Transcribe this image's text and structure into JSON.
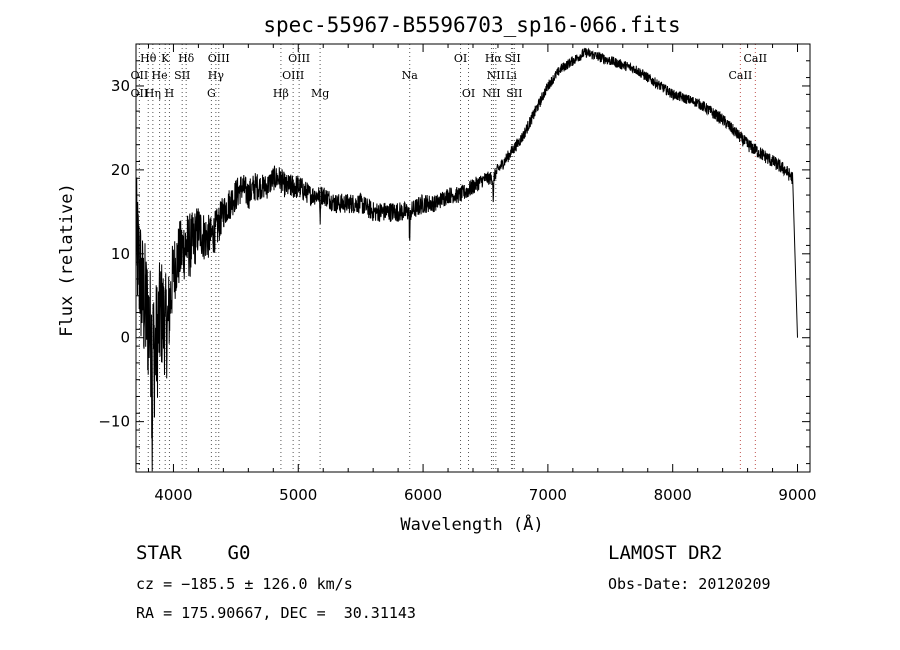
{
  "chart_data": {
    "type": "line",
    "title": "spec-55967-B5596703_sp16-066.fits",
    "xlabel": "Wavelength (Å)",
    "ylabel": "Flux (relative)",
    "xlim": [
      3700,
      9100
    ],
    "ylim": [
      -16,
      35
    ],
    "xticks": [
      4000,
      5000,
      6000,
      7000,
      8000,
      9000
    ],
    "yticks": [
      -10,
      0,
      10,
      20,
      30
    ],
    "grid": false,
    "legend": "none",
    "series": [
      {
        "x": [
          3700,
          3750,
          3800,
          3850,
          3900,
          3950,
          4000,
          4050,
          4100,
          4150,
          4200,
          4250,
          4300,
          4350,
          4400,
          4450,
          4500,
          4550,
          4600,
          4650,
          4700,
          4750,
          4800,
          4850,
          4900,
          4950,
          5000,
          5100,
          5200,
          5300,
          5400,
          5500,
          5600,
          5700,
          5800,
          5900,
          6000,
          6100,
          6200,
          6300,
          6400,
          6500,
          6560,
          6600,
          6700,
          6800,
          6900,
          7000,
          7100,
          7200,
          7300,
          7400,
          7500,
          7600,
          7700,
          7800,
          7900,
          8000,
          8100,
          8200,
          8300,
          8400,
          8500,
          8600,
          8700,
          8800,
          8900,
          8960,
          9000
        ],
        "y": [
          12,
          5,
          2,
          -2,
          3,
          1,
          8,
          10,
          11,
          11,
          13,
          12,
          12,
          13,
          15,
          16,
          17,
          18,
          17,
          18,
          18,
          18,
          19,
          19,
          18,
          18,
          18,
          17,
          17,
          16,
          16,
          16,
          15,
          15,
          15,
          15,
          16,
          16,
          17,
          17,
          18,
          19,
          19,
          20,
          22,
          24,
          27,
          30,
          32,
          33,
          34,
          33.5,
          33,
          32.5,
          32,
          31,
          30,
          29,
          28.5,
          28,
          27,
          26,
          24.5,
          23,
          22,
          21,
          20,
          19,
          0
        ],
        "noise": [
          8,
          8,
          8,
          8,
          7,
          6,
          4,
          4,
          4,
          4,
          3,
          3,
          2.5,
          2.5,
          2,
          2,
          2,
          1.8,
          1.8,
          1.8,
          1.5,
          1.5,
          1.5,
          1.5,
          1.5,
          1.5,
          1.5,
          1.2,
          1.2,
          1.2,
          1.2,
          1.2,
          1.2,
          1.2,
          1.2,
          1.2,
          1.2,
          1,
          1,
          1,
          1,
          0.8,
          0.8,
          0.8,
          0.7,
          0.7,
          0.7,
          0.6,
          0.6,
          0.6,
          0.6,
          0.6,
          0.6,
          0.6,
          0.6,
          0.6,
          0.6,
          0.6,
          0.6,
          0.6,
          0.7,
          0.7,
          0.7,
          0.8,
          0.8,
          0.8,
          0.8,
          0.8,
          0.8
        ]
      }
    ],
    "absorption_features": [
      {
        "x": 3830,
        "depth": 12
      },
      {
        "x": 5175,
        "depth": 3
      },
      {
        "x": 5893,
        "depth": 4
      },
      {
        "x": 6563,
        "depth": 3
      }
    ],
    "spectral_lines": [
      {
        "label": "Hθ",
        "x": 3798,
        "row": 1,
        "color": "#000000"
      },
      {
        "label": "K",
        "x": 3934,
        "row": 1,
        "color": "#000000"
      },
      {
        "label": "Hδ",
        "x": 4102,
        "row": 1,
        "color": "#000000"
      },
      {
        "label": "OIII",
        "x": 4363,
        "row": 1,
        "color": "#000000"
      },
      {
        "label": "OIII",
        "x": 5007,
        "row": 1,
        "color": "#000000"
      },
      {
        "label": "OI",
        "x": 6300,
        "row": 1,
        "color": "#000000"
      },
      {
        "label": "Hα",
        "x": 6563,
        "row": 1,
        "color": "#000000"
      },
      {
        "label": "SII",
        "x": 6717,
        "row": 1,
        "color": "#000000"
      },
      {
        "label": "CaII",
        "x": 8662,
        "row": 1,
        "color": "#000000"
      },
      {
        "label": "OII",
        "x": 3727,
        "row": 2,
        "color": "#000000"
      },
      {
        "label": "He",
        "x": 3889,
        "row": 2,
        "color": "#000000"
      },
      {
        "label": "SII",
        "x": 4070,
        "row": 2,
        "color": "#000000"
      },
      {
        "label": "Hγ",
        "x": 4340,
        "row": 2,
        "color": "#000000"
      },
      {
        "label": "OIII",
        "x": 4959,
        "row": 2,
        "color": "#000000"
      },
      {
        "label": "Na",
        "x": 5893,
        "row": 2,
        "color": "#000000"
      },
      {
        "label": "NII",
        "x": 6583,
        "row": 2,
        "color": "#000000"
      },
      {
        "label": "Li",
        "x": 6708,
        "row": 2,
        "color": "#000000"
      },
      {
        "label": "CaII",
        "x": 8542,
        "row": 2,
        "color": "#000000"
      },
      {
        "label": "OII",
        "x": 3727,
        "row": 3,
        "color": "#000000"
      },
      {
        "label": "Hη",
        "x": 3835,
        "row": 3,
        "color": "#000000"
      },
      {
        "label": "H",
        "x": 3968,
        "row": 3,
        "color": "#000000"
      },
      {
        "label": "G",
        "x": 4304,
        "row": 3,
        "color": "#000000"
      },
      {
        "label": "Hβ",
        "x": 4861,
        "row": 3,
        "color": "#000000"
      },
      {
        "label": "Mg",
        "x": 5175,
        "row": 3,
        "color": "#000000"
      },
      {
        "label": "OI",
        "x": 6364,
        "row": 3,
        "color": "#000000"
      },
      {
        "label": "NII",
        "x": 6548,
        "row": 3,
        "color": "#000000"
      },
      {
        "label": "SII",
        "x": 6731,
        "row": 3,
        "color": "#000000"
      }
    ],
    "line_marker_colors": {
      "emission": "#c0504d",
      "absorption": "#555555"
    }
  },
  "info": {
    "class": "STAR",
    "subclass": "G0",
    "survey": "LAMOST DR2",
    "cz": "cz = −185.5 ± 126.0 km/s",
    "obs_date": "Obs-Date: 20120209",
    "radec": "RA = 175.90667, DEC =  30.31143"
  }
}
